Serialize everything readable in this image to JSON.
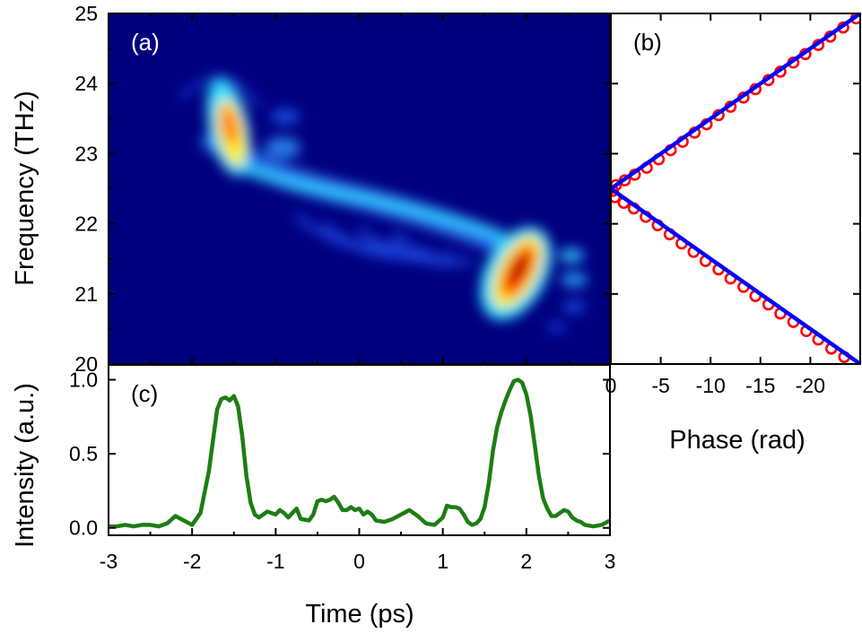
{
  "chart_data": [
    {
      "panel_label": "(a)",
      "type": "heatmap",
      "x_range": [
        -3,
        3
      ],
      "y_range": [
        20,
        25
      ],
      "ylabel": "Frequency (THz)",
      "y_ticks": [
        20,
        21,
        22,
        23,
        24,
        25
      ],
      "colormap": [
        "#00007f",
        "#0000ff",
        "#00ffff",
        "#ffff00",
        "#ff0000",
        "#7f0000"
      ],
      "label_color": "#ffffff",
      "features": [
        {
          "time": -1.55,
          "freq": 23.4,
          "relative_intensity": 0.8
        },
        {
          "time": -1.0,
          "freq": 23.05,
          "relative_intensity": 0.35
        },
        {
          "time": 1.95,
          "freq": 21.4,
          "relative_intensity": 1.0
        },
        {
          "time": 2.55,
          "freq": 21.5,
          "relative_intensity": 0.25
        }
      ]
    },
    {
      "panel_label": "(b)",
      "type": "scatter",
      "xlabel": "Phase (rad)",
      "x_range": [
        0,
        -25
      ],
      "y_range": [
        20,
        25
      ],
      "x_ticks": [
        0,
        -5,
        -10,
        -15,
        -20
      ],
      "x_tick_labels": [
        "0",
        "-5",
        "-10",
        "-15",
        "-20"
      ],
      "series": [
        {
          "marker": "open-circle",
          "color": "#ff0000",
          "points": [
            [
              -24.6,
              24.93
            ],
            [
              -23.3,
              24.8
            ],
            [
              -22.0,
              24.67
            ],
            [
              -20.8,
              24.55
            ],
            [
              -19.5,
              24.42
            ],
            [
              -18.3,
              24.3
            ],
            [
              -17.0,
              24.17
            ],
            [
              -15.8,
              24.05
            ],
            [
              -14.5,
              23.92
            ],
            [
              -13.3,
              23.8
            ],
            [
              -12.0,
              23.67
            ],
            [
              -10.8,
              23.55
            ],
            [
              -9.6,
              23.42
            ],
            [
              -8.4,
              23.3
            ],
            [
              -7.2,
              23.17
            ],
            [
              -6.0,
              23.05
            ],
            [
              -4.8,
              22.92
            ],
            [
              -3.6,
              22.8
            ],
            [
              -2.4,
              22.7
            ],
            [
              -1.4,
              22.62
            ],
            [
              -0.5,
              22.55
            ],
            [
              -0.2,
              22.47
            ],
            [
              -0.4,
              22.38
            ],
            [
              -1.3,
              22.3
            ],
            [
              -2.3,
              22.22
            ],
            [
              -3.5,
              22.1
            ],
            [
              -4.7,
              21.98
            ],
            [
              -5.9,
              21.85
            ],
            [
              -7.1,
              21.72
            ],
            [
              -8.3,
              21.6
            ],
            [
              -9.5,
              21.47
            ],
            [
              -10.8,
              21.35
            ],
            [
              -12.0,
              21.22
            ],
            [
              -13.3,
              21.1
            ],
            [
              -14.5,
              20.97
            ],
            [
              -15.8,
              20.85
            ],
            [
              -17.0,
              20.72
            ],
            [
              -18.3,
              20.6
            ],
            [
              -19.6,
              20.47
            ],
            [
              -20.8,
              20.35
            ],
            [
              -22.1,
              20.22
            ],
            [
              -23.4,
              20.1
            ]
          ]
        },
        {
          "marker": "line",
          "color": "#0000ff",
          "points": [
            [
              -25.0,
              25.0
            ],
            [
              0,
              22.5
            ],
            [
              -25.0,
              20.0
            ]
          ]
        }
      ]
    },
    {
      "panel_label": "(c)",
      "type": "line",
      "xlabel": "Time (ps)",
      "ylabel": "Intensity (a.u.)",
      "x_range": [
        -3,
        3
      ],
      "y_range": [
        -0.05,
        1.1
      ],
      "x_ticks": [
        -3,
        -2,
        -1,
        0,
        1,
        2,
        3
      ],
      "y_ticks": [
        0.0,
        0.5,
        1.0
      ],
      "y_tick_labels": [
        "0.0",
        "0.5",
        "1.0"
      ],
      "series": [
        {
          "color": "#1e7d14",
          "x": [
            -3.0,
            -2.9,
            -2.8,
            -2.7,
            -2.6,
            -2.5,
            -2.4,
            -2.3,
            -2.2,
            -2.1,
            -2.0,
            -1.9,
            -1.8,
            -1.7,
            -1.65,
            -1.6,
            -1.55,
            -1.5,
            -1.45,
            -1.4,
            -1.35,
            -1.3,
            -1.25,
            -1.2,
            -1.15,
            -1.1,
            -1.0,
            -0.95,
            -0.9,
            -0.85,
            -0.8,
            -0.75,
            -0.7,
            -0.6,
            -0.55,
            -0.5,
            -0.45,
            -0.4,
            -0.35,
            -0.3,
            -0.25,
            -0.2,
            -0.15,
            -0.1,
            -0.05,
            0.0,
            0.05,
            0.1,
            0.15,
            0.2,
            0.3,
            0.4,
            0.5,
            0.6,
            0.7,
            0.8,
            0.9,
            1.0,
            1.05,
            1.1,
            1.15,
            1.2,
            1.25,
            1.3,
            1.35,
            1.4,
            1.45,
            1.5,
            1.55,
            1.6,
            1.65,
            1.7,
            1.75,
            1.8,
            1.85,
            1.9,
            1.95,
            2.0,
            2.05,
            2.1,
            2.15,
            2.2,
            2.25,
            2.3,
            2.35,
            2.4,
            2.45,
            2.5,
            2.55,
            2.6,
            2.65,
            2.7,
            2.8,
            2.9,
            3.0
          ],
          "y": [
            0.01,
            0.01,
            0.02,
            0.01,
            0.02,
            0.02,
            0.01,
            0.03,
            0.08,
            0.05,
            0.02,
            0.1,
            0.38,
            0.8,
            0.87,
            0.88,
            0.86,
            0.89,
            0.82,
            0.62,
            0.35,
            0.17,
            0.09,
            0.07,
            0.09,
            0.11,
            0.09,
            0.12,
            0.1,
            0.07,
            0.1,
            0.13,
            0.06,
            0.05,
            0.09,
            0.18,
            0.19,
            0.18,
            0.19,
            0.21,
            0.17,
            0.12,
            0.12,
            0.14,
            0.12,
            0.13,
            0.09,
            0.11,
            0.09,
            0.05,
            0.04,
            0.06,
            0.09,
            0.12,
            0.08,
            0.03,
            0.02,
            0.07,
            0.15,
            0.14,
            0.14,
            0.13,
            0.09,
            0.04,
            0.02,
            0.03,
            0.06,
            0.14,
            0.3,
            0.52,
            0.68,
            0.78,
            0.86,
            0.93,
            0.99,
            1.0,
            0.98,
            0.9,
            0.76,
            0.56,
            0.35,
            0.2,
            0.13,
            0.08,
            0.08,
            0.1,
            0.12,
            0.11,
            0.07,
            0.05,
            0.04,
            0.02,
            0.01,
            0.02,
            0.05
          ]
        }
      ]
    }
  ]
}
